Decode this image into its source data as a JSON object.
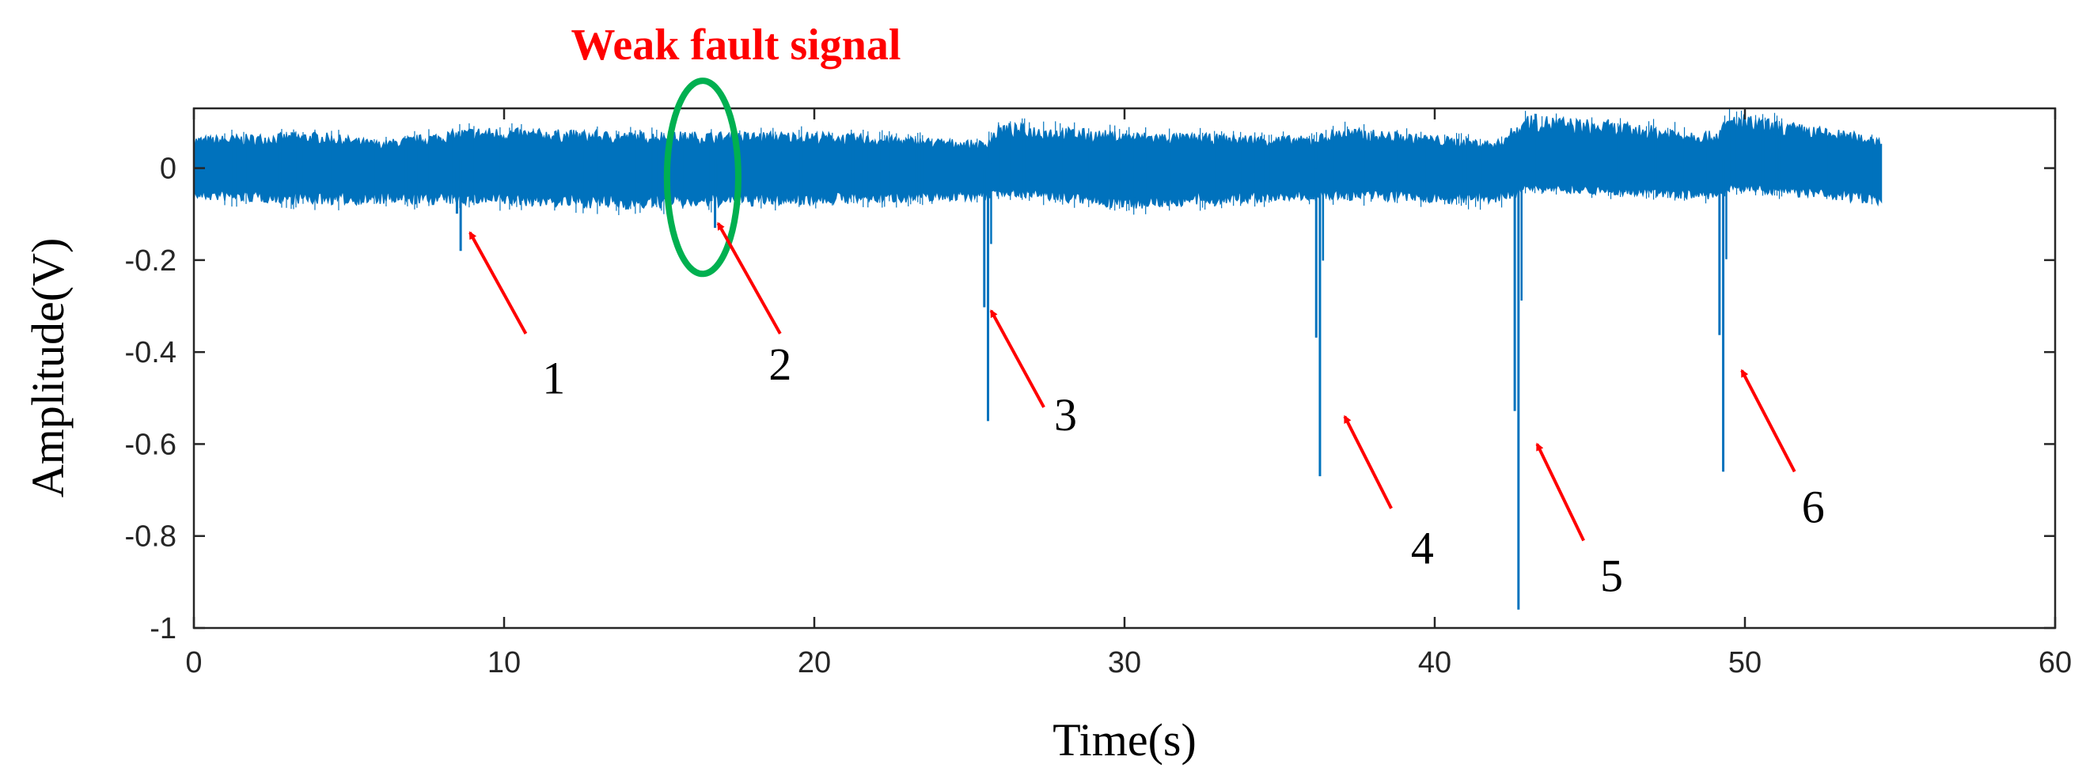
{
  "chart_data": {
    "type": "line",
    "title": "",
    "xlabel": "Time(s)",
    "ylabel": "Amplitude(V)",
    "xlim": [
      0,
      60
    ],
    "ylim": [
      -1,
      0.13
    ],
    "xticks": [
      0,
      10,
      20,
      30,
      40,
      50,
      60
    ],
    "yticks": [
      0,
      -0.2,
      -0.4,
      -0.6,
      -0.8,
      -1
    ],
    "xtick_labels": [
      "0",
      "10",
      "20",
      "30",
      "40",
      "50",
      "60"
    ],
    "ytick_labels": [
      "0",
      "-0.2",
      "-0.4",
      "-0.6",
      "-0.8",
      "-1"
    ],
    "grid": false,
    "signal": {
      "x_range": [
        0,
        54.4
      ],
      "baseline": 0,
      "noise_envelope": [
        {
          "x": 0,
          "upper": 0.07,
          "lower": -0.07
        },
        {
          "x": 4,
          "upper": 0.08,
          "lower": -0.08
        },
        {
          "x": 6,
          "upper": 0.06,
          "lower": -0.08
        },
        {
          "x": 9,
          "upper": 0.09,
          "lower": -0.08
        },
        {
          "x": 14,
          "upper": 0.08,
          "lower": -0.09
        },
        {
          "x": 20,
          "upper": 0.08,
          "lower": -0.08
        },
        {
          "x": 25.5,
          "upper": 0.06,
          "lower": -0.07
        },
        {
          "x": 26,
          "upper": 0.1,
          "lower": -0.06
        },
        {
          "x": 30,
          "upper": 0.08,
          "lower": -0.09
        },
        {
          "x": 36,
          "upper": 0.07,
          "lower": -0.07
        },
        {
          "x": 37,
          "upper": 0.09,
          "lower": -0.07
        },
        {
          "x": 42,
          "upper": 0.06,
          "lower": -0.08
        },
        {
          "x": 43,
          "upper": 0.12,
          "lower": -0.05
        },
        {
          "x": 49,
          "upper": 0.08,
          "lower": -0.07
        },
        {
          "x": 49.6,
          "upper": 0.12,
          "lower": -0.05
        },
        {
          "x": 54.4,
          "upper": 0.07,
          "lower": -0.08
        }
      ],
      "impulses": [
        {
          "x": 8.6,
          "min": -0.18
        },
        {
          "x": 16.8,
          "min": -0.13
        },
        {
          "x": 25.6,
          "min": -0.55
        },
        {
          "x": 36.3,
          "min": -0.67
        },
        {
          "x": 42.7,
          "min": -0.96
        },
        {
          "x": 49.3,
          "min": -0.66
        }
      ]
    },
    "color": "#0072bd",
    "annotations": [
      {
        "label": "1",
        "tip": {
          "x": 8.9,
          "y": -0.14
        },
        "tail": {
          "x": 10.7,
          "y": -0.36
        },
        "text_at": {
          "x": 11.6,
          "y": -0.49
        }
      },
      {
        "label": "2",
        "tip": {
          "x": 16.9,
          "y": -0.12
        },
        "tail": {
          "x": 18.9,
          "y": -0.36
        },
        "text_at": {
          "x": 18.9,
          "y": -0.46
        }
      },
      {
        "label": "3",
        "tip": {
          "x": 25.7,
          "y": -0.31
        },
        "tail": {
          "x": 27.4,
          "y": -0.52
        },
        "text_at": {
          "x": 28.1,
          "y": -0.57
        }
      },
      {
        "label": "4",
        "tip": {
          "x": 37.1,
          "y": -0.54
        },
        "tail": {
          "x": 38.6,
          "y": -0.74
        },
        "text_at": {
          "x": 39.6,
          "y": -0.86
        }
      },
      {
        "label": "5",
        "tip": {
          "x": 43.3,
          "y": -0.6
        },
        "tail": {
          "x": 44.8,
          "y": -0.81
        },
        "text_at": {
          "x": 45.7,
          "y": -0.92
        }
      },
      {
        "label": "6",
        "tip": {
          "x": 49.9,
          "y": -0.44
        },
        "tail": {
          "x": 51.6,
          "y": -0.66
        },
        "text_at": {
          "x": 52.2,
          "y": -0.77
        }
      }
    ],
    "highlight": {
      "label": "Weak fault signal",
      "label_color": "#ff0000",
      "ellipse_color": "#00b050",
      "center": {
        "x": 16.4,
        "y": -0.02
      },
      "rx_data": 1.15,
      "ry_data": 0.21
    },
    "arrow_color": "#ff0000"
  }
}
